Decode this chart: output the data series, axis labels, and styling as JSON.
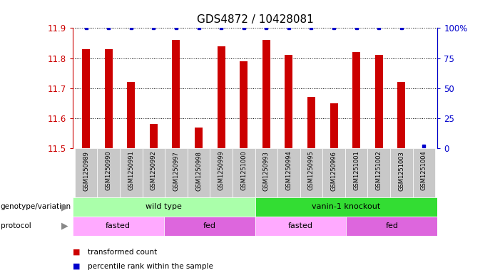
{
  "title": "GDS4872 / 10428081",
  "samples": [
    "GSM1250989",
    "GSM1250990",
    "GSM1250991",
    "GSM1250992",
    "GSM1250997",
    "GSM1250998",
    "GSM1250999",
    "GSM1251000",
    "GSM1250993",
    "GSM1250994",
    "GSM1250995",
    "GSM1250996",
    "GSM1251001",
    "GSM1251002",
    "GSM1251003",
    "GSM1251004"
  ],
  "transformed_count": [
    11.83,
    11.83,
    11.72,
    11.58,
    11.86,
    11.57,
    11.84,
    11.79,
    11.86,
    11.81,
    11.67,
    11.65,
    11.82,
    11.81,
    11.72,
    11.5
  ],
  "percentile": [
    100,
    100,
    100,
    100,
    100,
    100,
    100,
    100,
    100,
    100,
    100,
    100,
    100,
    100,
    100,
    2
  ],
  "ylim_min": 11.5,
  "ylim_max": 11.9,
  "yticks": [
    11.5,
    11.6,
    11.7,
    11.8,
    11.9
  ],
  "right_yticks": [
    0,
    25,
    50,
    75,
    100
  ],
  "bar_color": "#cc0000",
  "dot_color": "#0000cc",
  "genotype_groups": [
    {
      "label": "wild type",
      "start": 0,
      "end": 8,
      "color": "#aaffaa"
    },
    {
      "label": "vanin-1 knockout",
      "start": 8,
      "end": 16,
      "color": "#33dd33"
    }
  ],
  "protocol_groups": [
    {
      "label": "fasted",
      "start": 0,
      "end": 4,
      "color": "#ffaaff"
    },
    {
      "label": "fed",
      "start": 4,
      "end": 8,
      "color": "#dd66dd"
    },
    {
      "label": "fasted",
      "start": 8,
      "end": 12,
      "color": "#ffaaff"
    },
    {
      "label": "fed",
      "start": 12,
      "end": 16,
      "color": "#dd66dd"
    }
  ],
  "tick_bg_color": "#c8c8c8",
  "bar_width": 0.35,
  "title_fontsize": 11
}
